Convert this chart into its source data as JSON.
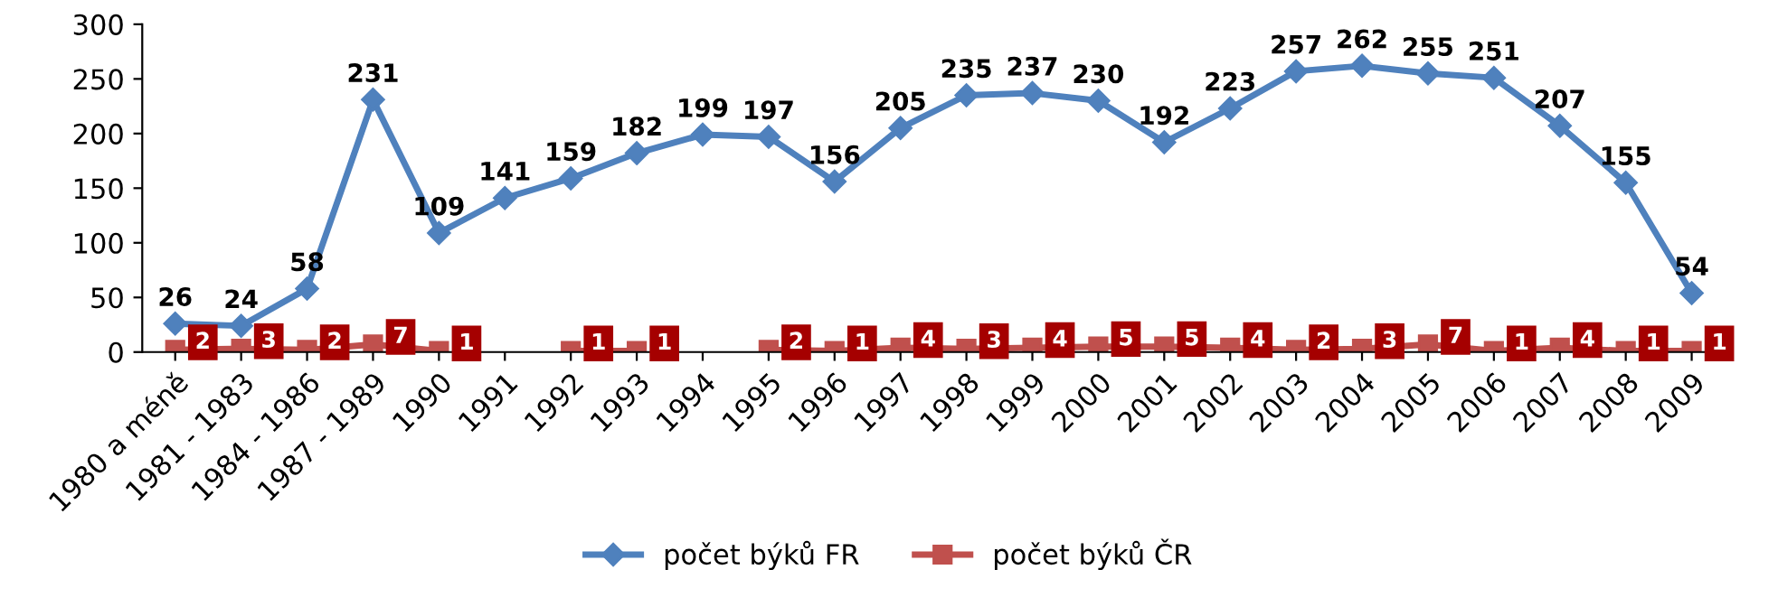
{
  "chart_data": {
    "type": "line",
    "categories": [
      "1980 a méně",
      "1981 - 1983",
      "1984 - 1986",
      "1987 - 1989",
      "1990",
      "1991",
      "1992",
      "1993",
      "1994",
      "1995",
      "1996",
      "1997",
      "1998",
      "1999",
      "2000",
      "2001",
      "2002",
      "2003",
      "2004",
      "2005",
      "2006",
      "2007",
      "2008",
      "2009"
    ],
    "series": [
      {
        "name": "počet býků FR",
        "color": "#4f81bd",
        "marker": "diamond",
        "values": [
          26,
          24,
          58,
          231,
          109,
          141,
          159,
          182,
          199,
          197,
          156,
          205,
          235,
          237,
          230,
          192,
          223,
          257,
          262,
          255,
          251,
          207,
          155,
          54
        ]
      },
      {
        "name": "počet býků ČR",
        "color": "#c0504d",
        "marker": "square",
        "values": [
          2,
          3,
          2,
          7,
          1,
          null,
          1,
          1,
          null,
          2,
          1,
          4,
          3,
          4,
          5,
          5,
          4,
          2,
          3,
          7,
          1,
          4,
          1,
          1
        ]
      }
    ],
    "ylim": [
      0,
      300
    ],
    "yticks": [
      0,
      50,
      100,
      150,
      200,
      250,
      300
    ],
    "data_labels": true,
    "grid": false,
    "legend": "bottom",
    "line_style": "solid"
  }
}
